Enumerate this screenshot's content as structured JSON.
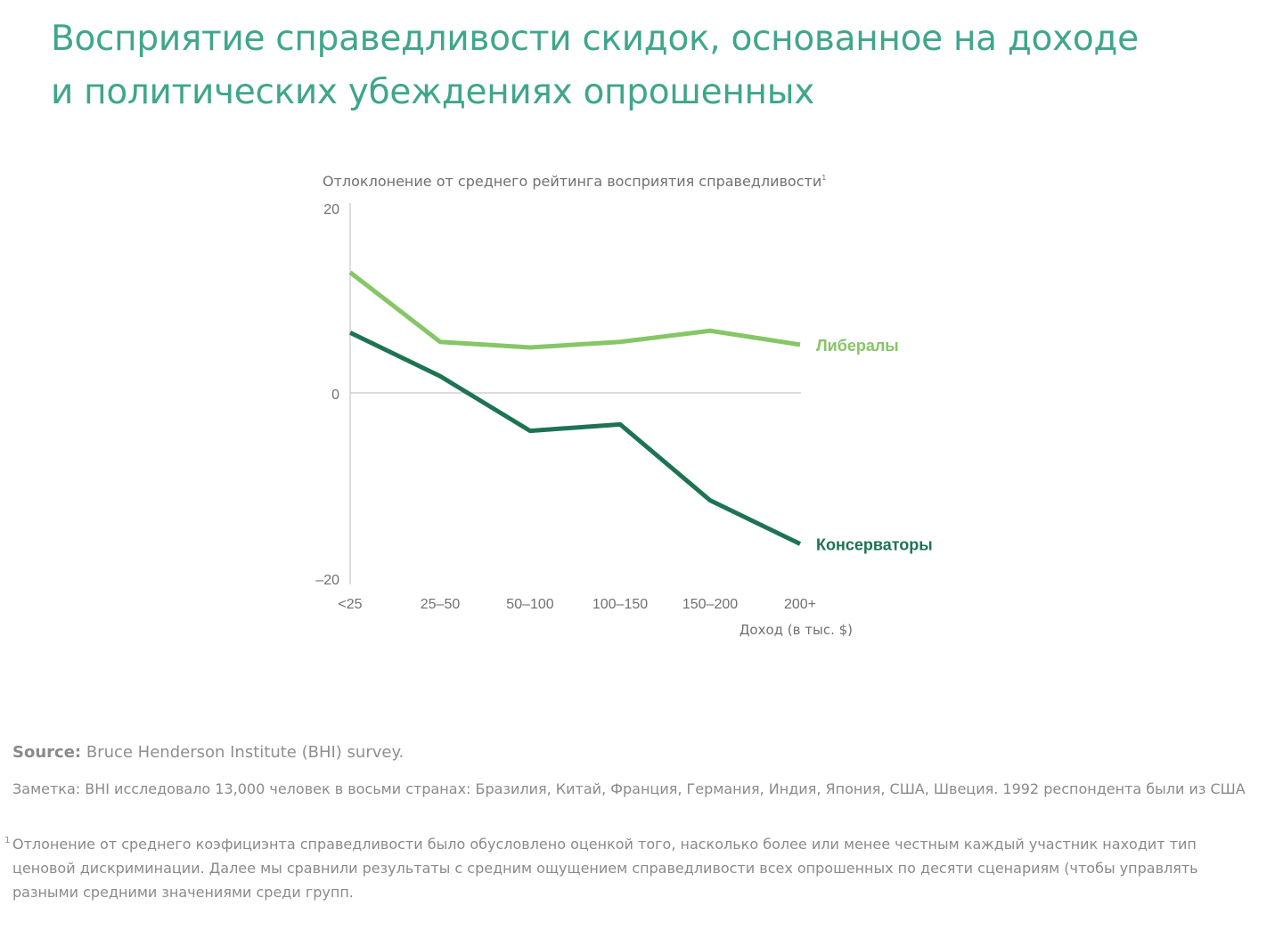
{
  "title": {
    "line1": "Восприятие справедливости скидок, основанное на доходе",
    "line2": "и политических убеждениях опрошенных"
  },
  "chart_data": {
    "type": "line",
    "title": "Восприятие справедливости скидок, основанное на доходе и политических убеждениях опрошенных",
    "ylabel": "Отлоклонение от среднего рейтинга восприятия справедливости",
    "ylabel_sup": "1",
    "xlabel": "Доход (в тыс. $)",
    "categories": [
      "<25",
      "25–50",
      "50–100",
      "100–150",
      "150–200",
      "200+"
    ],
    "yticks": [
      "20",
      "0",
      "–20"
    ],
    "ytick_values": [
      20,
      0,
      -20
    ],
    "ylim": [
      -20,
      20
    ],
    "grid": false,
    "series": [
      {
        "name": "Либералы",
        "color": "#86c666",
        "values": [
          13.1,
          5.6,
          5.0,
          5.6,
          6.8,
          5.3
        ]
      },
      {
        "name": "Консерваторы",
        "color": "#1e7352",
        "values": [
          6.6,
          1.9,
          -4.0,
          -3.3,
          -11.5,
          -16.2
        ]
      }
    ]
  },
  "footer": {
    "source_label": "Source:",
    "source_text": " Bruce Henderson Institute (BHI) survey.",
    "note": "Заметка: BHI исследовало 13,000 человек в восьми странах: Бразилия, Китай, Франция, Германия, Индия, Япония, США, Швеция. 1992 респондента были из США",
    "footnote_mark": "1",
    "footnote": "Отлонение от среднего коэфициэнта справедливости было обусловлено оценкой того, насколько более или менее честным каждый участник находит тип ценовой дискриминации. Далее мы сравнили результаты с средним ощущением справедливости всех опрошенных по десяти сценариям (чтобы управлять разными средними значениями среди групп."
  }
}
